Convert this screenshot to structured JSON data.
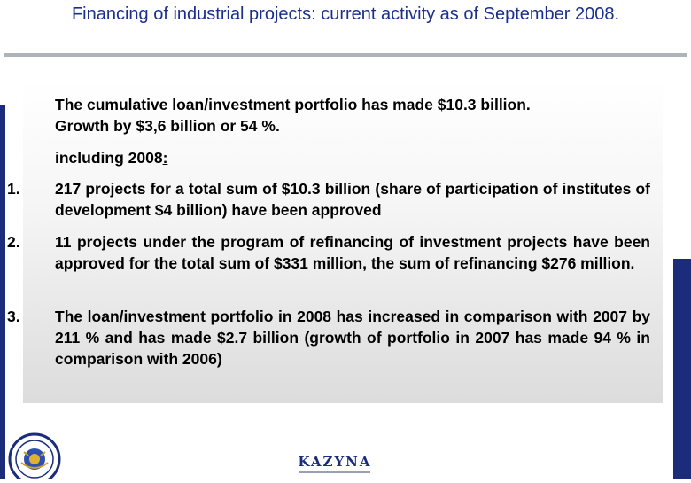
{
  "slide": {
    "title": "Financing of industrial projects: current activity as of September 2008."
  },
  "summary": {
    "line1": "The cumulative loan/investment portfolio has made $10.3 billion.",
    "line2": "Growth by $3,6 billion or 54 %."
  },
  "including": {
    "text": "including 2008",
    "colon": ":"
  },
  "items": [
    {
      "number": "1.",
      "text": "217 projects for a total sum of $10.3 billion (share of participation of institutes of development $4 billion) have been approved"
    },
    {
      "number": "2.",
      "text": "11 projects under the program of refinancing of investment projects have been approved for the total sum of $331 million, the sum of refinancing $276 million."
    },
    {
      "number": "3.",
      "text": "The loan/investment portfolio in 2008 has increased in comparison with 2007 by 211 % and has made $2.7 billion (growth of portfolio in 2007 has made 94 % in comparison with 2006)"
    }
  ],
  "footer": {
    "brand_name": "KAZYNA",
    "seal_icon": "kazyna-seal-icon"
  },
  "colors": {
    "title": "#1a2f8c",
    "accent_bar": "#1b2c7a",
    "rule": "#aeb3b9"
  }
}
